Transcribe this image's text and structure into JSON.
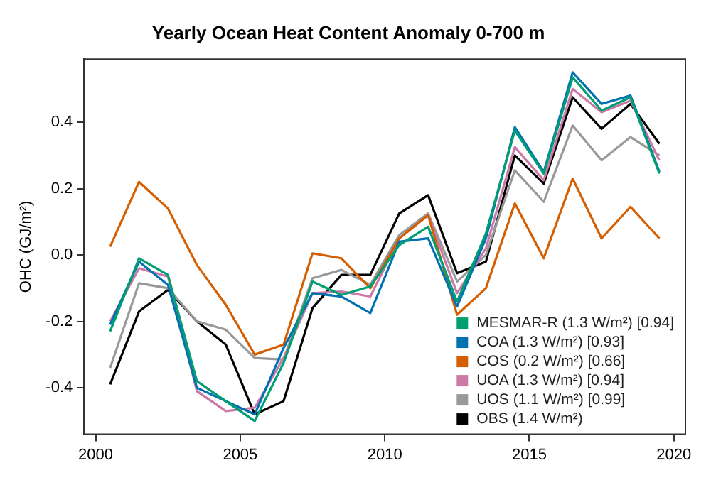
{
  "chart_data": {
    "type": "line",
    "title": "Yearly Ocean Heat Content Anomaly 0-700 m",
    "ylabel": "OHC (GJ/m²)",
    "x": [
      2000.5,
      2001.5,
      2002.5,
      2003.5,
      2004.5,
      2005.5,
      2006.5,
      2007.5,
      2008.5,
      2009.5,
      2010.5,
      2011.5,
      2012.5,
      2013.5,
      2014.5,
      2015.5,
      2016.5,
      2017.5,
      2018.5,
      2019.5
    ],
    "series": [
      {
        "name": "MESMAR-R (1.3 W/m²) [0.94]",
        "color": "#009e73",
        "values": [
          -0.23,
          -0.01,
          -0.06,
          -0.38,
          -0.44,
          -0.5,
          -0.325,
          -0.08,
          -0.12,
          -0.095,
          0.03,
          0.085,
          -0.14,
          0.065,
          0.375,
          0.245,
          0.535,
          0.435,
          0.475,
          0.245
        ]
      },
      {
        "name": "COA (1.3 W/m²) [0.93]",
        "color": "#0072b2",
        "values": [
          -0.21,
          -0.02,
          -0.09,
          -0.4,
          -0.44,
          -0.48,
          -0.28,
          -0.115,
          -0.125,
          -0.175,
          0.04,
          0.05,
          -0.155,
          0.05,
          0.385,
          0.25,
          0.55,
          0.455,
          0.48,
          0.25
        ]
      },
      {
        "name": "COS (0.2 W/m²) [0.66]",
        "color": "#d55e00",
        "values": [
          0.025,
          0.22,
          0.14,
          -0.03,
          -0.15,
          -0.3,
          -0.27,
          0.005,
          -0.01,
          -0.1,
          0.05,
          0.12,
          -0.18,
          -0.1,
          0.155,
          -0.01,
          0.23,
          0.05,
          0.145,
          0.05
        ]
      },
      {
        "name": "UOA (1.3 W/m²) [0.94]",
        "color": "#cc79a7",
        "values": [
          -0.2,
          -0.04,
          -0.065,
          -0.41,
          -0.47,
          -0.46,
          -0.31,
          -0.115,
          -0.11,
          -0.125,
          0.05,
          0.12,
          -0.115,
          0.02,
          0.325,
          0.225,
          0.5,
          0.43,
          0.465,
          0.285
        ]
      },
      {
        "name": "UOS (1.1 W/m²) [0.99]",
        "color": "#999999",
        "values": [
          -0.34,
          -0.085,
          -0.1,
          -0.2,
          -0.225,
          -0.31,
          -0.315,
          -0.07,
          -0.045,
          -0.09,
          0.06,
          0.125,
          -0.08,
          0.0,
          0.255,
          0.16,
          0.39,
          0.285,
          0.355,
          0.3
        ]
      },
      {
        "name": "OBS (1.4 W/m²)",
        "color": "#000000",
        "values": [
          -0.39,
          -0.17,
          -0.105,
          -0.2,
          -0.27,
          -0.48,
          -0.44,
          -0.16,
          -0.06,
          -0.06,
          0.125,
          0.18,
          -0.055,
          -0.02,
          0.3,
          0.215,
          0.475,
          0.38,
          0.455,
          0.335
        ]
      }
    ],
    "xlim": [
      1999.6,
      2020.4
    ],
    "xticks": [
      2000,
      2005,
      2010,
      2015,
      2020
    ],
    "ylim": [
      -0.54,
      0.59
    ],
    "yticks": [
      -0.4,
      -0.2,
      {
        "value": 0,
        "label": "0.0"
      },
      0.2,
      0.4
    ],
    "legend": "bottom right",
    "marker": "none",
    "line_style": "solid",
    "grid": false
  }
}
